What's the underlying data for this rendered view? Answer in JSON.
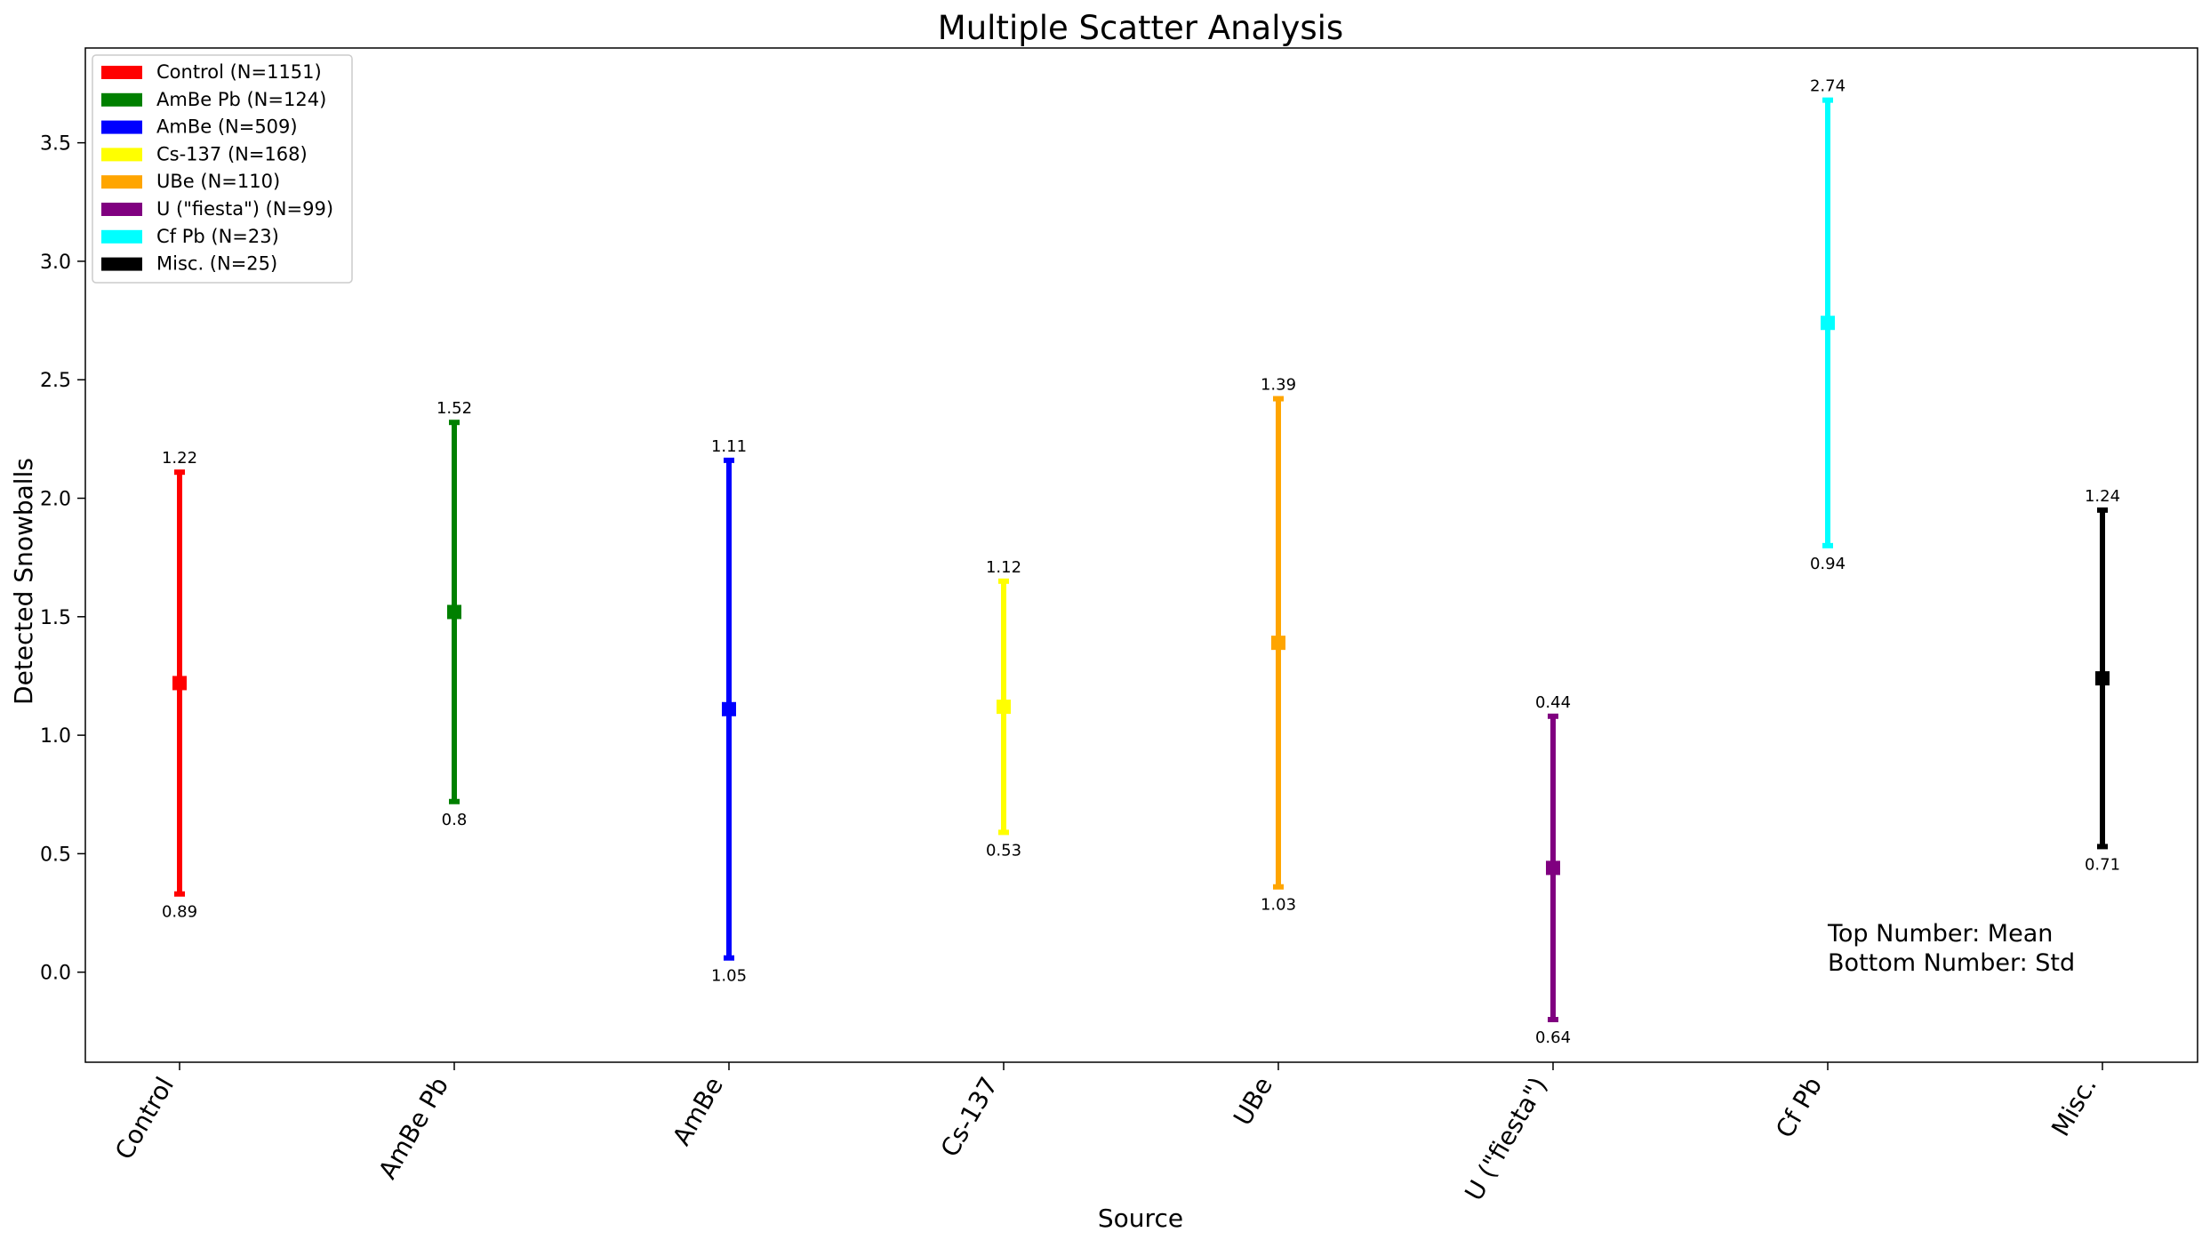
{
  "chart_data": {
    "type": "errorbar",
    "title": "Multiple Scatter Analysis",
    "xlabel": "Source",
    "ylabel": "Detected Snowballs",
    "ylim": [
      -0.38,
      3.9
    ],
    "yticks": [
      0.0,
      0.5,
      1.0,
      1.5,
      2.0,
      2.5,
      3.0,
      3.5
    ],
    "ytick_labels": [
      "0.0",
      "0.5",
      "1.0",
      "1.5",
      "2.0",
      "2.5",
      "3.0",
      "3.5"
    ],
    "grid": false,
    "legend_position": "top-left",
    "categories": [
      "Control",
      "AmBe Pb",
      "AmBe",
      "Cs-137",
      "UBe",
      "U (\"fiesta\")",
      "Cf Pb",
      "Misc."
    ],
    "series": [
      {
        "name": "Control (N=1151)",
        "category": "Control",
        "mean": 1.22,
        "std": 0.89,
        "mean_label": "1.22",
        "std_label": "0.89",
        "color": "#ff0000"
      },
      {
        "name": "AmBe Pb (N=124)",
        "category": "AmBe Pb",
        "mean": 1.52,
        "std": 0.8,
        "mean_label": "1.52",
        "std_label": "0.8",
        "color": "#008000"
      },
      {
        "name": "AmBe (N=509)",
        "category": "AmBe",
        "mean": 1.11,
        "std": 1.05,
        "mean_label": "1.11",
        "std_label": "1.05",
        "color": "#0000ff"
      },
      {
        "name": "Cs-137 (N=168)",
        "category": "Cs-137",
        "mean": 1.12,
        "std": 0.53,
        "mean_label": "1.12",
        "std_label": "0.53",
        "color": "#ffff00"
      },
      {
        "name": "UBe (N=110)",
        "category": "UBe",
        "mean": 1.39,
        "std": 1.03,
        "mean_label": "1.39",
        "std_label": "1.03",
        "color": "#ffa500"
      },
      {
        "name": "U (\"fiesta\") (N=99)",
        "category": "U (\"fiesta\")",
        "mean": 0.44,
        "std": 0.64,
        "mean_label": "0.44",
        "std_label": "0.64",
        "color": "#800080"
      },
      {
        "name": "Cf Pb (N=23)",
        "category": "Cf Pb",
        "mean": 2.74,
        "std": 0.94,
        "mean_label": "2.74",
        "std_label": "0.94",
        "color": "#00ffff"
      },
      {
        "name": "Misc. (N=25)",
        "category": "Misc.",
        "mean": 1.24,
        "std": 0.71,
        "mean_label": "1.24",
        "std_label": "0.71",
        "color": "#000000"
      }
    ],
    "annotation": {
      "line1": "Top Number: Mean",
      "line2": "Bottom Number: Std"
    }
  }
}
